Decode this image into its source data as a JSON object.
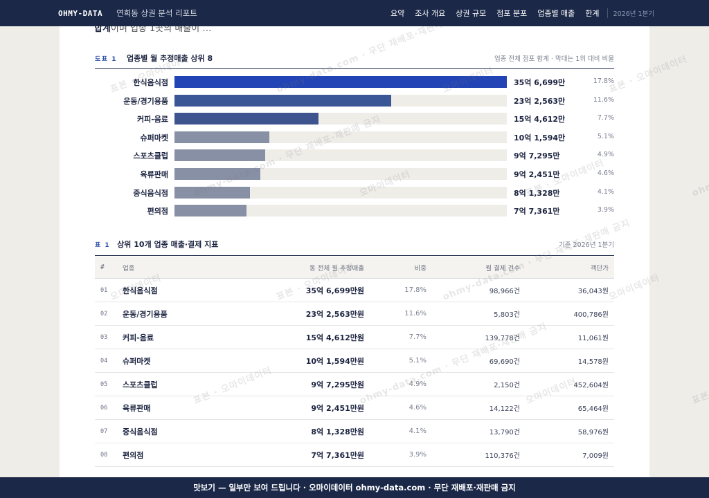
{
  "nav": {
    "brand": "OHMY-DATA",
    "report_title": "연희동 상권 분석 리포트",
    "links": [
      "요약",
      "조사 개요",
      "상권 규모",
      "점포 분포",
      "업종별 매출",
      "한계"
    ],
    "period": "2026년 1분기"
  },
  "intro_clip": {
    "bold": "합계",
    "rest": "이며 업종 1곳의 매출이 …"
  },
  "figure": {
    "label": "도표 1",
    "title": "업종별 월 추정매출 상위 8",
    "note": "업종 전체 점포 합계 · 막대는 1위 대비 비율"
  },
  "chart_data": {
    "type": "bar",
    "orientation": "horizontal",
    "categories": [
      "한식음식점",
      "운동/경기용품",
      "커피-음료",
      "슈퍼마켓",
      "스포츠클럽",
      "육류판매",
      "중식음식점",
      "편의점"
    ],
    "values": [
      3566990000,
      2325630000,
      1546120000,
      1015940000,
      972950000,
      924510000,
      813280000,
      773610000
    ],
    "value_labels": [
      "35억 6,699만",
      "23억 2,563만",
      "15억 4,612만",
      "10억 1,594만",
      "9억 7,295만",
      "9억 2,451만",
      "8억 1,328만",
      "7억 7,361만"
    ],
    "share_labels": [
      "17.8%",
      "11.6%",
      "7.7%",
      "5.1%",
      "4.9%",
      "4.6%",
      "4.1%",
      "3.9%"
    ],
    "bar_colors": [
      "#2244b4",
      "#3a5696",
      "#3e548e",
      "#8890a6",
      "#8890a6",
      "#8890a6",
      "#8890a6",
      "#8890a6"
    ],
    "track_color": "#efede8"
  },
  "table": {
    "label": "표 1",
    "title": "상위 10개 업종 매출·결제 지표",
    "note": "기준 2026년 1분기",
    "headers": {
      "idx": "#",
      "name": "업종",
      "sales": "동 전체 월 추정매출",
      "share": "비중",
      "count": "월 결제 건수",
      "avg": "객단가"
    },
    "rows": [
      {
        "idx": "01",
        "name": "한식음식점",
        "sales": "35억 6,699만원",
        "share": "17.8%",
        "count": "98,966건",
        "avg": "36,043원"
      },
      {
        "idx": "02",
        "name": "운동/경기용품",
        "sales": "23억 2,563만원",
        "share": "11.6%",
        "count": "5,803건",
        "avg": "400,786원"
      },
      {
        "idx": "03",
        "name": "커피-음료",
        "sales": "15억 4,612만원",
        "share": "7.7%",
        "count": "139,778건",
        "avg": "11,061원"
      },
      {
        "idx": "04",
        "name": "슈퍼마켓",
        "sales": "10억 1,594만원",
        "share": "5.1%",
        "count": "69,690건",
        "avg": "14,578원"
      },
      {
        "idx": "05",
        "name": "스포츠클럽",
        "sales": "9억 7,295만원",
        "share": "4.9%",
        "count": "2,150건",
        "avg": "452,604원"
      },
      {
        "idx": "06",
        "name": "육류판매",
        "sales": "9억 2,451만원",
        "share": "4.6%",
        "count": "14,122건",
        "avg": "65,464원"
      },
      {
        "idx": "07",
        "name": "중식음식점",
        "sales": "8억 1,328만원",
        "share": "4.1%",
        "count": "13,790건",
        "avg": "58,976원"
      },
      {
        "idx": "08",
        "name": "편의점",
        "sales": "7억 7,361만원",
        "share": "3.9%",
        "count": "110,376건",
        "avg": "7,009원"
      }
    ]
  },
  "watermark": {
    "texts": [
      "표본 · 오마이데이터",
      "ohmy-data.com · 무단 재배포·재판매 금지",
      "오마이데이터"
    ]
  },
  "banner": {
    "text": "맛보기 — 일부만 보여 드립니다 · 오마이데이터 ohmy-data.com · 무단 재배포·재판매 금지"
  }
}
